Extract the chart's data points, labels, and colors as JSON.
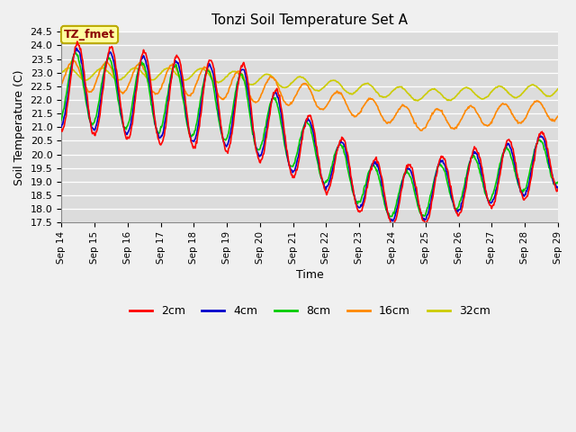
{
  "title": "Tonzi Soil Temperature Set A",
  "xlabel": "Time",
  "ylabel": "Soil Temperature (C)",
  "ylim": [
    17.5,
    24.5
  ],
  "annotation": "TZ_fmet",
  "colors": {
    "2cm": "#FF0000",
    "4cm": "#0000CC",
    "8cm": "#00CC00",
    "16cm": "#FF8800",
    "32cm": "#CCCC00"
  },
  "legend_labels": [
    "2cm",
    "4cm",
    "8cm",
    "16cm",
    "32cm"
  ],
  "fig_bg": "#F0F0F0",
  "plot_bg": "#DCDCDC",
  "n_points": 720,
  "x_start": 14,
  "x_end": 29,
  "x_ticks": [
    14,
    15,
    16,
    17,
    18,
    19,
    20,
    21,
    22,
    23,
    24,
    25,
    26,
    27,
    28,
    29
  ],
  "x_tick_labels": [
    "Sep 14",
    "Sep 15",
    "Sep 16",
    "Sep 17",
    "Sep 18",
    "Sep 19",
    "Sep 20",
    "Sep 21",
    "Sep 22",
    "Sep 23",
    "Sep 24",
    "Sep 25",
    "Sep 26",
    "Sep 27",
    "Sep 28",
    "Sep 29"
  ],
  "yticks": [
    17.5,
    18.0,
    18.5,
    19.0,
    19.5,
    20.0,
    20.5,
    21.0,
    21.5,
    22.0,
    22.5,
    23.0,
    23.5,
    24.0,
    24.5
  ]
}
